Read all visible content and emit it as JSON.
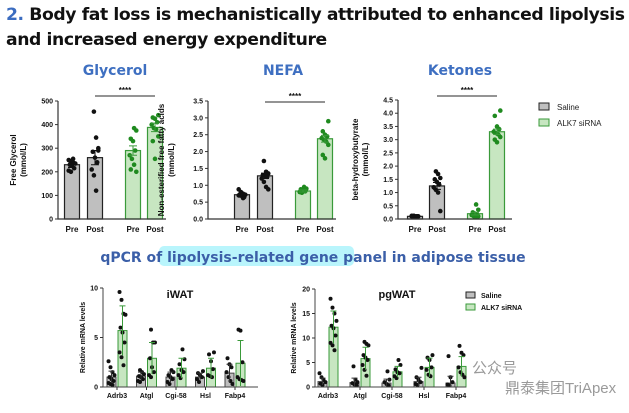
{
  "title": {
    "number": "2.",
    "text": "Body fat loss is mechanistically attributed to enhanced lipolysis and increased energy expenditure"
  },
  "section_heading": "qPCR of lipolysis-related gene panel in adipose tissue",
  "legend": [
    "Saline",
    "ALK7 siRNA"
  ],
  "watermark": {
    "text": "鼎泰集团TriApex",
    "prefix": "公众号"
  },
  "colors": {
    "saline_fill": "#bfbfbf",
    "sirna_fill": "#c7e6c1",
    "sirna_stroke": "#3a9a3a",
    "sirna_dot": "#1f8a1f",
    "saline_dot": "#111111",
    "title_blue": "#3e6fc1",
    "highlight": "#b9f5fc"
  },
  "chart_data": [
    {
      "type": "bar",
      "title": "Glycerol",
      "ylabel": "Free Glycerol (mmol/L)",
      "ylim": [
        0,
        500
      ],
      "yticks": [
        "0",
        "100",
        "200",
        "300",
        "400",
        "500"
      ],
      "ytick_values": [
        0,
        100,
        200,
        300,
        400,
        500
      ],
      "categories": [
        "Pre",
        "Post",
        "Pre",
        "Post"
      ],
      "groups": [
        "Saline",
        "Saline",
        "ALK7 siRNA",
        "ALK7 siRNA"
      ],
      "significance": "****",
      "values": [
        230,
        260,
        290,
        388
      ],
      "errors": [
        12,
        30,
        20,
        18
      ],
      "points": [
        [
          250,
          245,
          240,
          235,
          230,
          225,
          215,
          205,
          200,
          255
        ],
        [
          455,
          345,
          290,
          285,
          260,
          240,
          210,
          185,
          120,
          300
        ],
        [
          385,
          375,
          340,
          330,
          290,
          270,
          255,
          230,
          200,
          210
        ],
        [
          440,
          430,
          425,
          410,
          400,
          385,
          380,
          350,
          330,
          255
        ]
      ]
    },
    {
      "type": "bar",
      "title": "NEFA",
      "ylabel": "Non-esterified free fatty acids (mmol/L)",
      "ylim": [
        0,
        3.5
      ],
      "yticks": [
        "0.0",
        "0.5",
        "1.0",
        "1.5",
        "2.0",
        "2.5",
        "3.0",
        "3.5"
      ],
      "ytick_values": [
        0,
        0.5,
        1,
        1.5,
        2,
        2.5,
        3,
        3.5
      ],
      "categories": [
        "Pre",
        "Post",
        "Pre",
        "Post"
      ],
      "groups": [
        "Saline",
        "Saline",
        "ALK7 siRNA",
        "ALK7 siRNA"
      ],
      "significance": "****",
      "values": [
        0.72,
        1.28,
        0.83,
        2.38
      ],
      "errors": [
        0.04,
        0.08,
        0.03,
        0.1
      ],
      "points": [
        [
          0.88,
          0.8,
          0.75,
          0.72,
          0.7,
          0.68,
          0.65,
          0.7,
          0.78,
          0.62
        ],
        [
          1.72,
          1.4,
          1.35,
          1.3,
          1.28,
          1.25,
          1.2,
          1.1,
          0.95,
          0.88
        ],
        [
          0.95,
          0.9,
          0.88,
          0.85,
          0.82,
          0.8,
          0.78,
          0.83,
          0.9,
          0.8
        ],
        [
          2.9,
          2.6,
          2.5,
          2.45,
          2.4,
          2.35,
          2.3,
          2.2,
          1.9,
          1.8
        ]
      ]
    },
    {
      "type": "bar",
      "title": "Ketones",
      "ylabel": "beta-hydroxybutyrate (mmol/L)",
      "ylim": [
        0,
        4.5
      ],
      "yticks": [
        "0.0",
        "0.5",
        "1.0",
        "1.5",
        "2.0",
        "2.5",
        "3.0",
        "3.5",
        "4.0",
        "4.5"
      ],
      "ytick_values": [
        0,
        0.5,
        1,
        1.5,
        2,
        2.5,
        3,
        3.5,
        4,
        4.5
      ],
      "categories": [
        "Pre",
        "Post",
        "Pre",
        "Post"
      ],
      "groups": [
        "Saline",
        "Saline",
        "ALK7 siRNA",
        "ALK7 siRNA"
      ],
      "significance": "****",
      "values": [
        0.1,
        1.25,
        0.2,
        3.3
      ],
      "errors": [
        0.01,
        0.13,
        0.05,
        0.1
      ],
      "points": [
        [
          0.1,
          0.12,
          0.08,
          0.1,
          0.11,
          0.09,
          0.1,
          0.12,
          0.08,
          0.1
        ],
        [
          1.8,
          1.7,
          1.55,
          1.5,
          1.4,
          1.3,
          1.2,
          1.1,
          1.0,
          0.3
        ],
        [
          0.55,
          0.35,
          0.25,
          0.2,
          0.15,
          0.15,
          0.1,
          0.1,
          0.1,
          0.15
        ],
        [
          4.1,
          3.9,
          3.5,
          3.4,
          3.3,
          3.25,
          3.2,
          3.1,
          3.0,
          2.9
        ]
      ]
    },
    {
      "type": "bar",
      "title": "iWAT",
      "ylabel": "Relative mRNA levels",
      "ylim": [
        0,
        10
      ],
      "yticks": [
        "0",
        "5",
        "10"
      ],
      "ytick_values": [
        0,
        5,
        10
      ],
      "categories": [
        "Adrb3",
        "Atgl",
        "Cgi-58",
        "Hsl",
        "Fabp4"
      ],
      "series": [
        {
          "name": "Saline",
          "values": [
            1.0,
            1.1,
            1.0,
            1.0,
            1.4
          ],
          "errors": [
            0.6,
            0.4,
            0.5,
            0.4,
            0.9
          ],
          "points": [
            [
              2.6,
              2,
              1.5,
              1.2,
              1,
              0.8,
              0.6,
              0.4,
              0.3,
              0.2
            ],
            [
              1.7,
              1.5,
              1.3,
              1.1,
              1,
              0.8,
              0.6,
              0.5
            ],
            [
              1.7,
              1.5,
              1.2,
              1,
              0.8,
              0.5,
              0.3
            ],
            [
              1.6,
              1.4,
              1.2,
              1,
              0.8,
              0.5
            ],
            [
              2.9,
              2.3,
              2,
              1.5,
              1,
              0.6,
              0.3
            ]
          ]
        },
        {
          "name": "ALK7 siRNA",
          "values": [
            5.7,
            2.9,
            1.9,
            1.9,
            2.4
          ],
          "errors": [
            2.5,
            1.6,
            1.0,
            1.0,
            2.3
          ],
          "points": [
            [
              9.6,
              8.8,
              7.4,
              7.3,
              6,
              5.5,
              4.5,
              3.5,
              3,
              2.2
            ],
            [
              5.8,
              4.5,
              4.5,
              2.9,
              2,
              1.5,
              1.2,
              1
            ],
            [
              3.8,
              2.8,
              2.3,
              1.7,
              1.5,
              1.2,
              0.9
            ],
            [
              3.5,
              3.3,
              2.6,
              1.8,
              1.2,
              1.1,
              1
            ],
            [
              5.8,
              5.7,
              2.5,
              1,
              0.8,
              0.7,
              0.6
            ]
          ]
        }
      ]
    },
    {
      "type": "bar",
      "title": "pgWAT",
      "ylabel": "Relative mRNA levels",
      "ylim": [
        0,
        20
      ],
      "yticks": [
        "0",
        "5",
        "10",
        "15",
        "20"
      ],
      "ytick_values": [
        0,
        5,
        10,
        15,
        20
      ],
      "categories": [
        "Adrb3",
        "Atgl",
        "Cgi-58",
        "Hsl",
        "Fabp4"
      ],
      "series": [
        {
          "name": "Saline",
          "values": [
            1.1,
            0.9,
            0.8,
            1.1,
            0.8
          ],
          "errors": [
            0.7,
            0.9,
            0.8,
            0.9,
            1.4
          ],
          "points": [
            [
              2.8,
              2,
              1.5,
              1,
              0.7,
              0.4
            ],
            [
              4.2,
              1.5,
              1,
              0.8,
              0.5,
              0.3
            ],
            [
              3.2,
              1.5,
              1,
              0.6,
              0.3
            ],
            [
              3.9,
              2,
              1.5,
              1,
              0.6,
              0.4
            ],
            [
              6.3,
              2,
              1,
              0.5,
              0.3
            ]
          ]
        },
        {
          "name": "ALK7 siRNA",
          "values": [
            12.2,
            5.8,
            3.1,
            4.0,
            4.2
          ],
          "errors": [
            3.3,
            2.3,
            1.1,
            1.9,
            2.0
          ],
          "points": [
            [
              18,
              16.2,
              15,
              13.5,
              12.5,
              12,
              10.5,
              9,
              8.5,
              7.5
            ],
            [
              9.2,
              8.8,
              8.5,
              6.5,
              6,
              5.5,
              4.5,
              3.5,
              2.3
            ],
            [
              5.5,
              4.5,
              3.6,
              3,
              2.8,
              2.2,
              1.8
            ],
            [
              6.5,
              6,
              5.5,
              4,
              3.5,
              2.5,
              2.2
            ],
            [
              8.4,
              7,
              6.5,
              4,
              3,
              2.5,
              2
            ]
          ]
        }
      ]
    }
  ]
}
